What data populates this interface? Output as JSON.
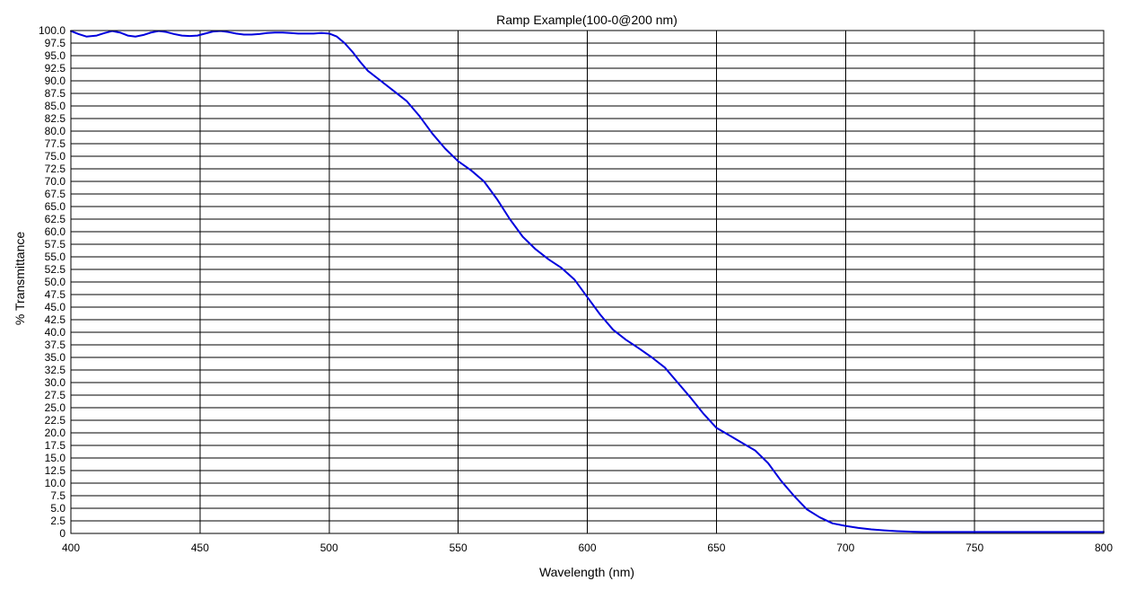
{
  "chart_data": {
    "type": "line",
    "title": "Ramp Example(100-0@200 nm)",
    "xlabel": "Wavelength (nm)",
    "ylabel": "% Transmittance",
    "xlim": [
      400,
      800
    ],
    "ylim": [
      0,
      100
    ],
    "x_ticks": [
      "400",
      "450",
      "500",
      "550",
      "600",
      "650",
      "700",
      "750",
      "800"
    ],
    "y_ticks": [
      "0",
      "2.5",
      "5.0",
      "7.5",
      "10.0",
      "12.5",
      "15.0",
      "17.5",
      "20.0",
      "22.5",
      "25.0",
      "27.5",
      "30.0",
      "32.5",
      "35.0",
      "37.5",
      "40.0",
      "42.5",
      "45.0",
      "47.5",
      "50.0",
      "52.5",
      "55.0",
      "57.5",
      "60.0",
      "62.5",
      "65.0",
      "67.5",
      "70.0",
      "72.5",
      "75.0",
      "77.5",
      "80.0",
      "82.5",
      "85.0",
      "87.5",
      "90.0",
      "92.5",
      "95.0",
      "97.5",
      "100.0"
    ],
    "grid": true,
    "series": [
      {
        "color": "#0000dd",
        "x": [
          400,
          403,
          406,
          410,
          413,
          416,
          419,
          422,
          425,
          428,
          431,
          434,
          437,
          440,
          443,
          446,
          449,
          452,
          455,
          458,
          461,
          464,
          467,
          470,
          473,
          476,
          479,
          482,
          485,
          488,
          491,
          494,
          497,
          500,
          503,
          506,
          509,
          512,
          515,
          520,
          525,
          530,
          535,
          540,
          545,
          550,
          555,
          560,
          565,
          570,
          575,
          580,
          585,
          590,
          595,
          600,
          605,
          610,
          615,
          620,
          625,
          630,
          635,
          640,
          645,
          650,
          655,
          660,
          665,
          670,
          675,
          680,
          685,
          690,
          695,
          700,
          705,
          710,
          715,
          720,
          725,
          730,
          740,
          750,
          760,
          770,
          780,
          790,
          800
        ],
        "y": [
          99.9,
          99.3,
          98.8,
          99.0,
          99.5,
          99.9,
          99.6,
          99.0,
          98.8,
          99.1,
          99.6,
          99.9,
          99.7,
          99.3,
          99.0,
          98.9,
          99.0,
          99.4,
          99.8,
          99.9,
          99.7,
          99.4,
          99.2,
          99.2,
          99.3,
          99.5,
          99.6,
          99.6,
          99.5,
          99.4,
          99.4,
          99.4,
          99.5,
          99.4,
          98.8,
          97.5,
          95.8,
          93.8,
          92.0,
          90.0,
          88.0,
          86.0,
          83.0,
          79.5,
          76.5,
          74.0,
          72.2,
          70.0,
          66.5,
          62.5,
          59.0,
          56.5,
          54.5,
          52.8,
          50.5,
          47.0,
          43.5,
          40.5,
          38.5,
          36.8,
          35.0,
          33.0,
          30.0,
          27.0,
          23.8,
          21.0,
          19.5,
          18.0,
          16.5,
          14.0,
          10.5,
          7.5,
          4.8,
          3.2,
          2.0,
          1.5,
          1.1,
          0.8,
          0.6,
          0.45,
          0.35,
          0.3,
          0.3,
          0.3,
          0.3,
          0.3,
          0.3,
          0.3,
          0.3
        ]
      }
    ]
  }
}
